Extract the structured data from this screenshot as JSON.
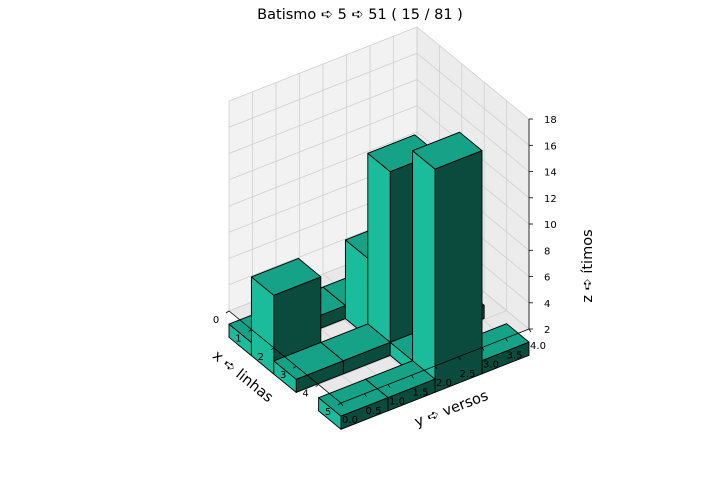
{
  "chart_data": {
    "type": "bar3d",
    "title": "Batismo ➪ 5 ➪ 51 ( 15 / 81 )",
    "xlabel": "x ➪ linhas",
    "ylabel": "y ➪ versos",
    "zlabel": "z ➪ ítimos",
    "xlim": [
      0,
      5
    ],
    "ylim": [
      0,
      4
    ],
    "zlim": [
      2,
      18
    ],
    "xticks": [
      "0",
      "1",
      "2",
      "3",
      "4",
      "5"
    ],
    "yticks": [
      "0.0",
      "0.5",
      "1.0",
      "1.5",
      "2.0",
      "2.5",
      "3.0",
      "3.5",
      "4.0"
    ],
    "zticks": [
      "2",
      "4",
      "6",
      "8",
      "10",
      "12",
      "14",
      "16",
      "18"
    ],
    "bars": [
      {
        "x": 0,
        "y": 0,
        "value": 1
      },
      {
        "x": 0,
        "y": 1,
        "value": 1
      },
      {
        "x": 0,
        "y": 2,
        "value": 1
      },
      {
        "x": 0,
        "y": 3,
        "value": 1
      },
      {
        "x": 1,
        "y": 0,
        "value": 6
      },
      {
        "x": 1,
        "y": 2,
        "value": 6
      },
      {
        "x": 2,
        "y": 0,
        "value": 1
      },
      {
        "x": 2,
        "y": 1,
        "value": 1
      },
      {
        "x": 2,
        "y": 2,
        "value": 14
      },
      {
        "x": 2,
        "y": 3,
        "value": 1
      },
      {
        "x": 3,
        "y": 2,
        "value": 1
      },
      {
        "x": 4,
        "y": 0,
        "value": 1
      },
      {
        "x": 4,
        "y": 1,
        "value": 1
      },
      {
        "x": 4,
        "y": 2,
        "value": 17
      },
      {
        "x": 4,
        "y": 3,
        "value": 1
      }
    ],
    "bar_width": 1,
    "bar_depth": 1,
    "color": "#1abc9c",
    "grid": true
  }
}
